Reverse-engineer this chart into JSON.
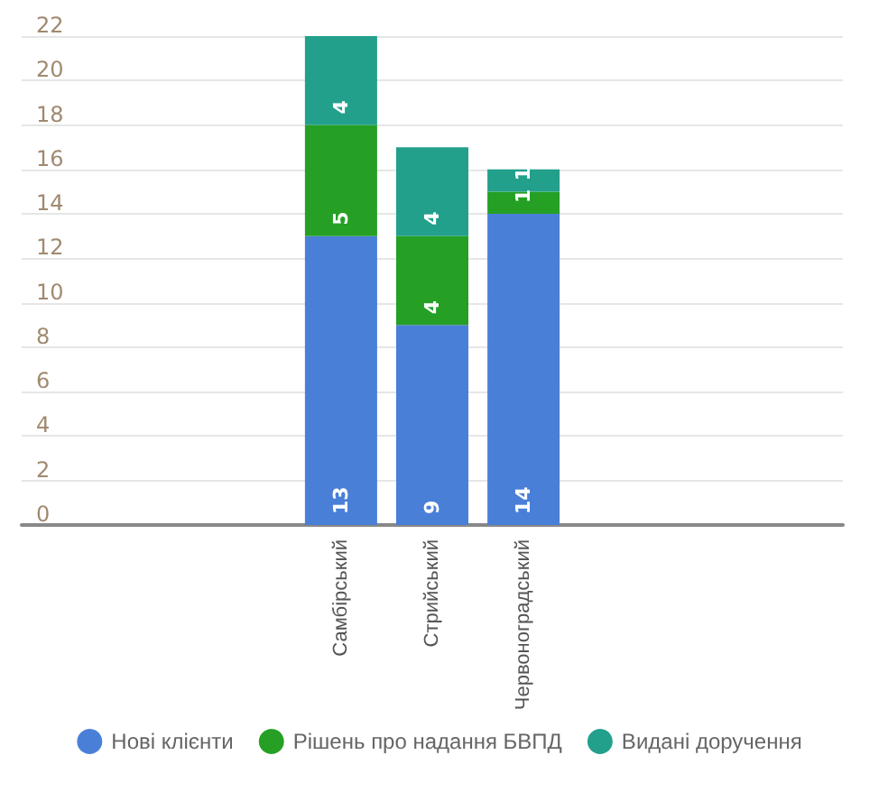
{
  "chart_data": {
    "type": "bar",
    "stacked": true,
    "data_labels": true,
    "grid": "y",
    "legend": "bottom",
    "categories": [
      null,
      null,
      null,
      "Самбірський",
      "Стрийський",
      "Червоноградський",
      null,
      null,
      null
    ],
    "ylim": [
      0,
      22
    ],
    "yticks": [
      0,
      2,
      4,
      6,
      8,
      10,
      12,
      14,
      16,
      18,
      20,
      22
    ],
    "series": [
      {
        "name": "Нові клієнти",
        "color": "#4a7fd8",
        "values": [
          null,
          null,
          null,
          13,
          9,
          14,
          null,
          null,
          null
        ]
      },
      {
        "name": "Рішень про надання БВПД",
        "color": "#25a025",
        "values": [
          null,
          null,
          null,
          5,
          4,
          1,
          null,
          null,
          null
        ]
      },
      {
        "name": "Видані доручення",
        "color": "#22a08c",
        "values": [
          null,
          null,
          null,
          4,
          4,
          1,
          null,
          null,
          null
        ]
      }
    ]
  }
}
